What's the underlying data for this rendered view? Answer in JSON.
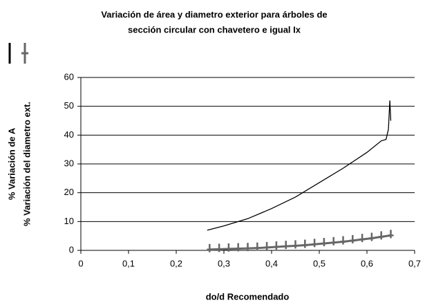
{
  "chart_data": {
    "type": "line",
    "title": [
      "Variación de área y diametro exterior para árboles de",
      "sección circular con chavetero e igual Ix"
    ],
    "xlabel": "do/d Recomendado",
    "series": [
      {
        "name": "% Variación de A",
        "color": "#000000",
        "marker": null,
        "x": [
          0.265,
          0.3,
          0.35,
          0.4,
          0.45,
          0.5,
          0.55,
          0.6,
          0.63,
          0.64,
          0.645,
          0.648,
          0.65
        ],
        "values": [
          7,
          8.5,
          11,
          14.5,
          18.5,
          23.5,
          28.5,
          34,
          38,
          38.5,
          42,
          52,
          45
        ]
      },
      {
        "name": "% Variación del diametro ext.",
        "color": "#666666",
        "marker": "+",
        "x": [
          0.27,
          0.29,
          0.31,
          0.33,
          0.35,
          0.37,
          0.39,
          0.41,
          0.43,
          0.45,
          0.47,
          0.49,
          0.51,
          0.53,
          0.55,
          0.57,
          0.59,
          0.61,
          0.63,
          0.65
        ],
        "values": [
          0.3,
          0.4,
          0.5,
          0.6,
          0.7,
          0.8,
          1.0,
          1.2,
          1.4,
          1.6,
          1.8,
          2.1,
          2.4,
          2.7,
          3.0,
          3.4,
          3.8,
          4.2,
          4.7,
          5.2
        ]
      }
    ],
    "xlim": [
      0,
      0.7
    ],
    "xticks": [
      0,
      {
        "value": 0.1,
        "label": "0,1"
      },
      {
        "value": 0.2,
        "label": "0,2"
      },
      {
        "value": 0.3,
        "label": "0,3"
      },
      {
        "value": 0.4,
        "label": "0,4"
      },
      {
        "value": 0.5,
        "label": "0,5"
      },
      {
        "value": 0.6,
        "label": "0,6"
      },
      {
        "value": 0.7,
        "label": "0,7"
      }
    ],
    "ylim": [
      0,
      60
    ],
    "yticks": [
      0,
      10,
      20,
      30,
      40,
      50,
      60
    ],
    "grid": true
  }
}
